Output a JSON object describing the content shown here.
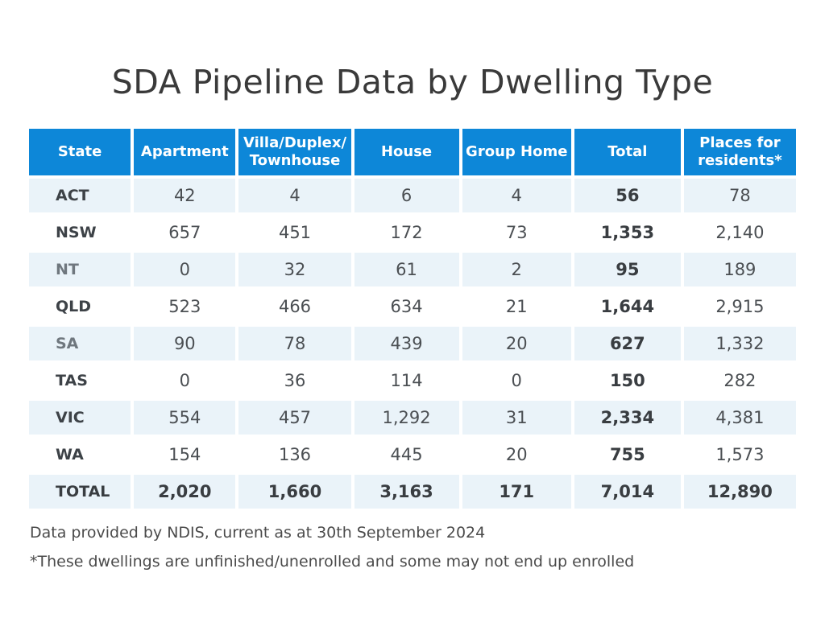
{
  "title": "SDA Pipeline Data by Dwelling Type",
  "table": {
    "columns": [
      {
        "key": "state",
        "lines": [
          "State"
        ]
      },
      {
        "key": "apartment",
        "lines": [
          "Apartment"
        ]
      },
      {
        "key": "villa",
        "lines": [
          "Villa/Duplex/",
          "Townhouse"
        ]
      },
      {
        "key": "house",
        "lines": [
          "House"
        ]
      },
      {
        "key": "group_home",
        "lines": [
          "Group Home"
        ]
      },
      {
        "key": "total",
        "lines": [
          "Total"
        ]
      },
      {
        "key": "places",
        "lines": [
          "Places for",
          "residents*"
        ]
      }
    ],
    "rows": [
      {
        "state": "ACT",
        "apartment": "42",
        "villa": "4",
        "house": "6",
        "group_home": "4",
        "total": "56",
        "places": "78",
        "muted": false,
        "is_total_row": false
      },
      {
        "state": "NSW",
        "apartment": "657",
        "villa": "451",
        "house": "172",
        "group_home": "73",
        "total": "1,353",
        "places": "2,140",
        "muted": false,
        "is_total_row": false
      },
      {
        "state": "NT",
        "apartment": "0",
        "villa": "32",
        "house": "61",
        "group_home": "2",
        "total": "95",
        "places": "189",
        "muted": true,
        "is_total_row": false
      },
      {
        "state": "QLD",
        "apartment": "523",
        "villa": "466",
        "house": "634",
        "group_home": "21",
        "total": "1,644",
        "places": "2,915",
        "muted": false,
        "is_total_row": false
      },
      {
        "state": "SA",
        "apartment": "90",
        "villa": "78",
        "house": "439",
        "group_home": "20",
        "total": "627",
        "places": "1,332",
        "muted": true,
        "is_total_row": false
      },
      {
        "state": "TAS",
        "apartment": "0",
        "villa": "36",
        "house": "114",
        "group_home": "0",
        "total": "150",
        "places": "282",
        "muted": false,
        "is_total_row": false
      },
      {
        "state": "VIC",
        "apartment": "554",
        "villa": "457",
        "house": "1,292",
        "group_home": "31",
        "total": "2,334",
        "places": "4,381",
        "muted": false,
        "is_total_row": false
      },
      {
        "state": "WA",
        "apartment": "154",
        "villa": "136",
        "house": "445",
        "group_home": "20",
        "total": "755",
        "places": "1,573",
        "muted": false,
        "is_total_row": false
      },
      {
        "state": "TOTAL",
        "apartment": "2,020",
        "villa": "1,660",
        "house": "3,163",
        "group_home": "171",
        "total": "7,014",
        "places": "12,890",
        "muted": false,
        "is_total_row": true
      }
    ]
  },
  "footnotes": [
    "Data provided by NDIS, current as at 30th September 2024",
    "*These dwellings are unfinished/unenrolled and some may not end up enrolled"
  ],
  "colors": {
    "header_bg": "#0d87d8",
    "header_text": "#ffffff",
    "row_shade": "#eaf3f9",
    "label_dark": "#3d4247",
    "label_muted": "#6f777e",
    "value_text": "#4b4f53",
    "title_text": "#3a3a3a",
    "footnote_text": "#4b4b4b"
  }
}
